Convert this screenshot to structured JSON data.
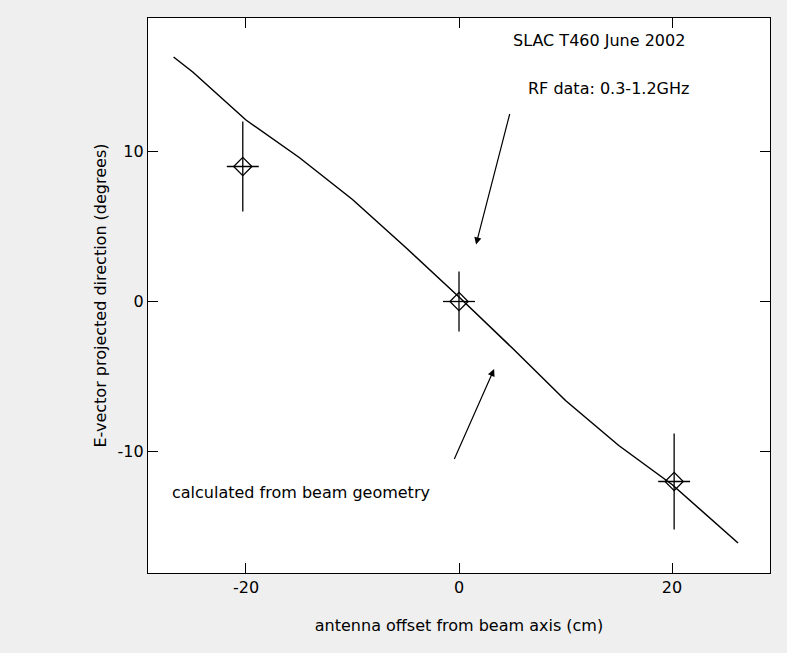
{
  "chart_data": {
    "type": "scatter",
    "x_label": "antenna offset from beam axis (cm)",
    "y_label": "E-vector projected direction (degrees)",
    "annotations": [
      "SLAC T460 June 2002",
      "RF data: 0.3-1.2GHz",
      "calculated from beam geometry"
    ],
    "x": [
      -20.3,
      0,
      20.2
    ],
    "values": [
      9,
      0,
      -12
    ],
    "x_error": [
      1.5,
      1.5,
      1.5
    ],
    "y_error": [
      3,
      2,
      3.2
    ],
    "marker": "diamond-open",
    "color": "#000000",
    "curve": {
      "type": "line",
      "line_style": "solid",
      "color": "#000000",
      "x": [
        -26.8,
        -25,
        -20,
        -15,
        -10,
        -5,
        0,
        5,
        10,
        15,
        20,
        25,
        26.2
      ],
      "values": [
        16.3,
        15.3,
        12.1,
        9.6,
        6.8,
        3.6,
        0.3,
        -3.1,
        -6.6,
        -9.6,
        -12.2,
        -15.3,
        -16.1
      ]
    },
    "xlim": [
      -29.2,
      29.2
    ],
    "xticks": [
      -20,
      0,
      20
    ],
    "ylim": [
      -18.1,
      18.9
    ],
    "yticks": [
      -10,
      0,
      10
    ],
    "grid": false
  }
}
